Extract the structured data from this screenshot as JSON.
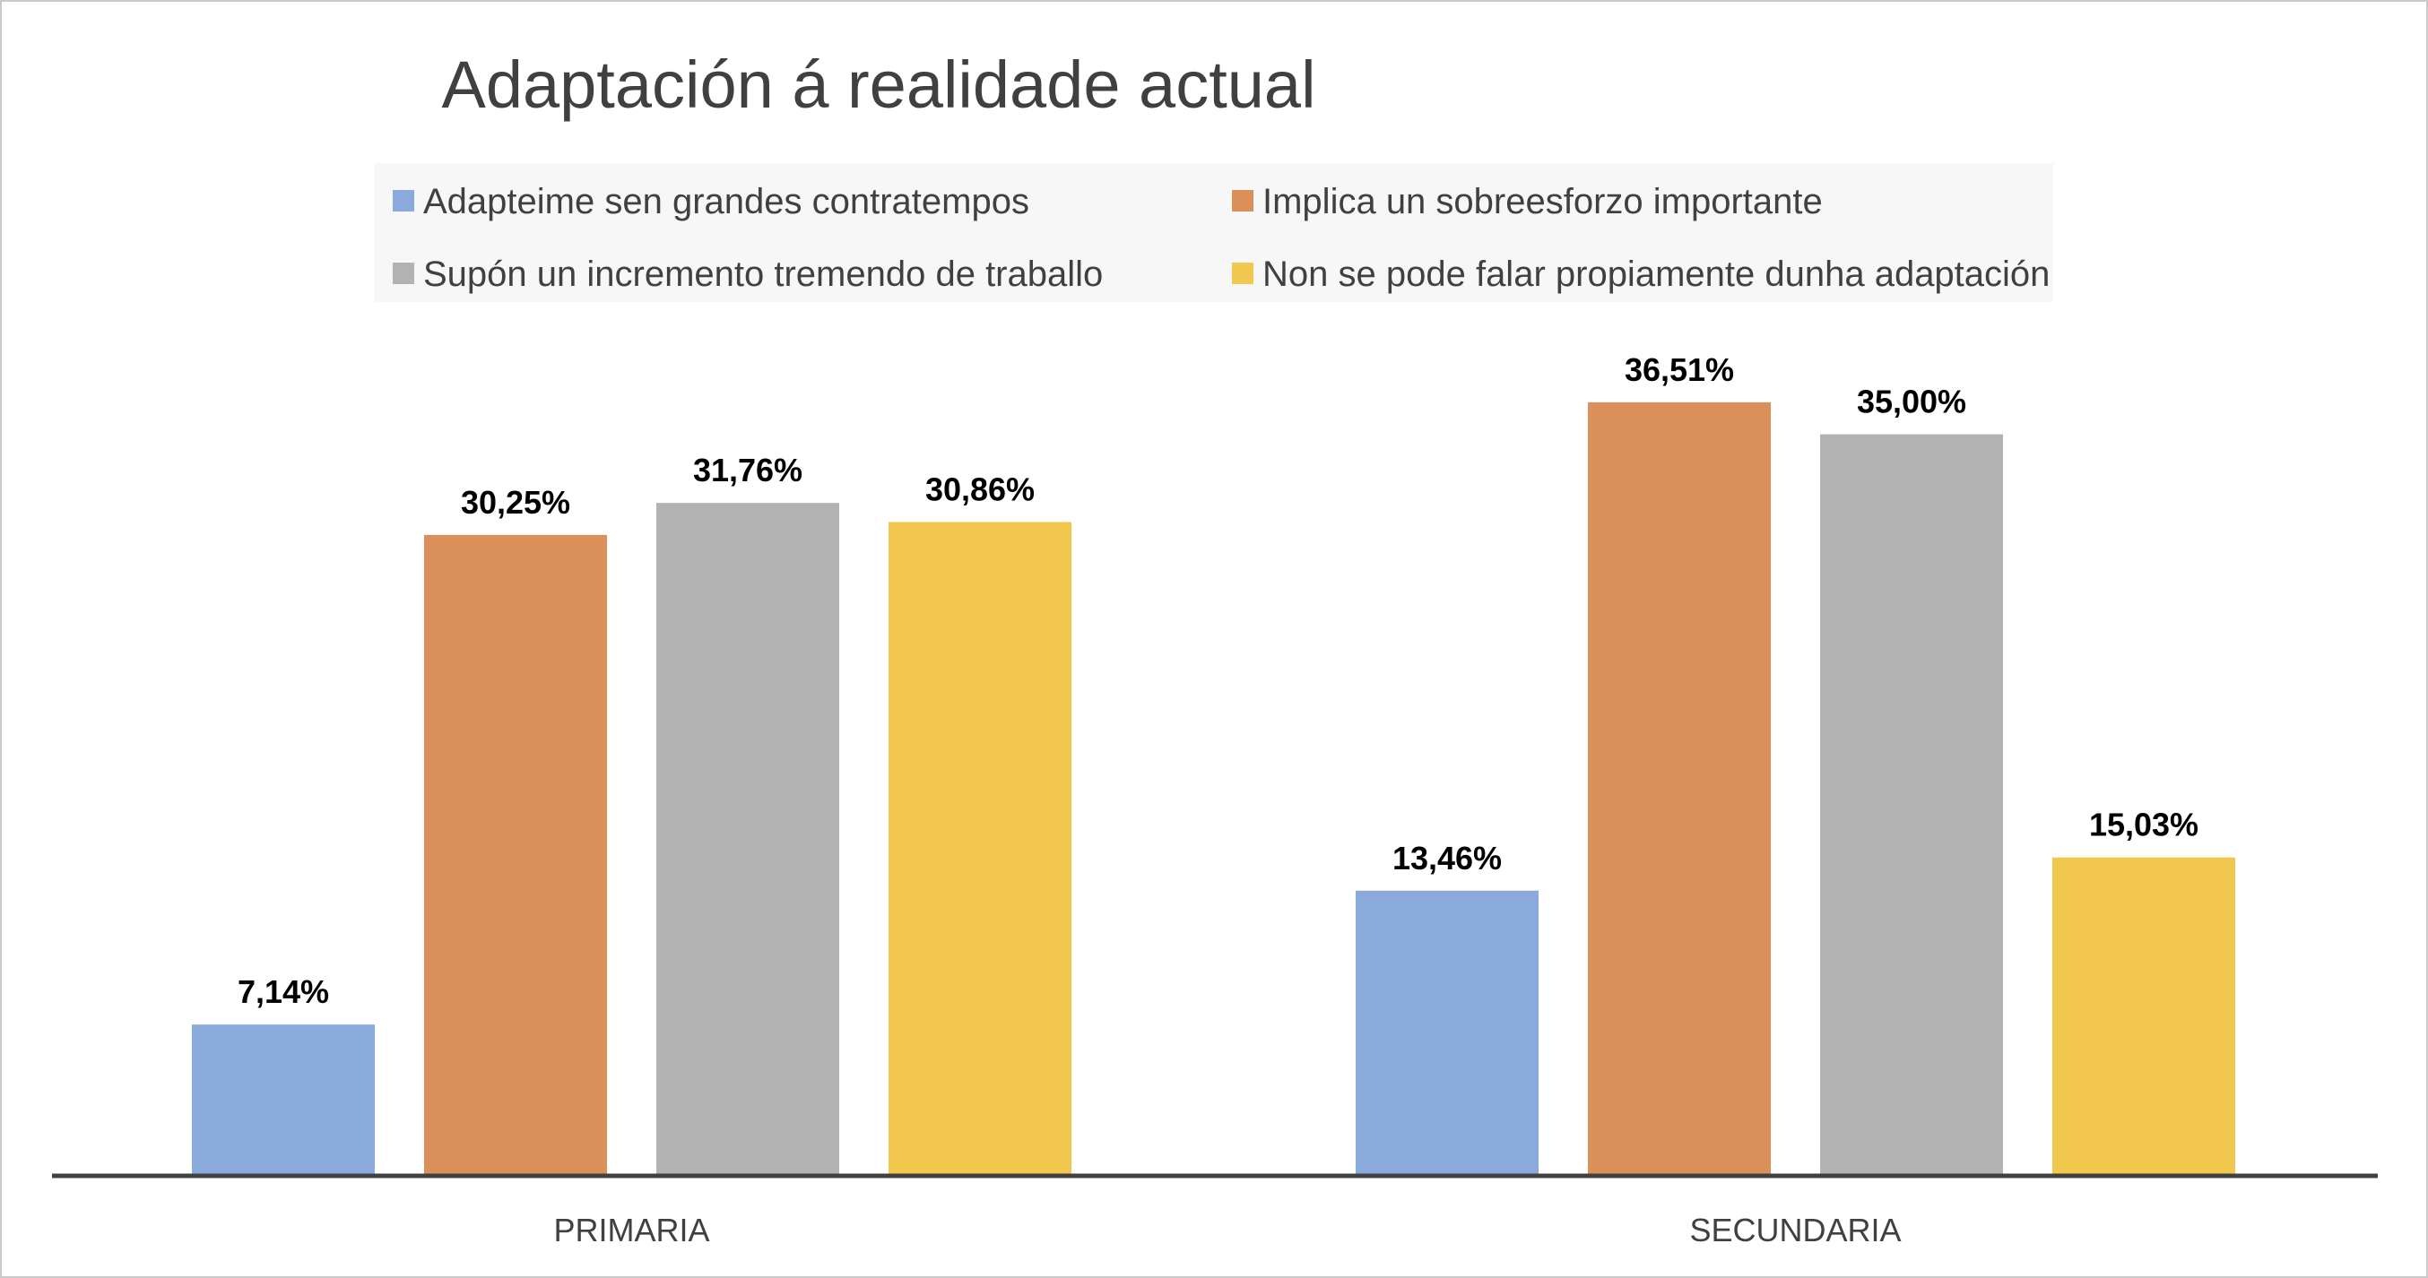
{
  "chart_data": {
    "type": "bar",
    "title": "Adaptación á realidade actual",
    "xlabel": "",
    "ylabel": "",
    "categories": [
      "PRIMARIA",
      "SECUNDARIA"
    ],
    "series": [
      {
        "name": "Adapteime sen grandes contratempos",
        "color": "#8AAADB",
        "values": [
          7.14,
          13.46
        ],
        "labels": [
          "7,14%",
          "13,46%"
        ]
      },
      {
        "name": "Implica un sobreesforzo importante",
        "color": "#DB8F59",
        "values": [
          30.25,
          36.51
        ],
        "labels": [
          "30,25%",
          "36,51%"
        ]
      },
      {
        "name": "Supón un incremento tremendo de traballo",
        "color": "#B2B2B2",
        "values": [
          31.76,
          35.0
        ],
        "labels": [
          "31,76%",
          "35,00%"
        ]
      },
      {
        "name": "Non se pode falar propiamente dunha adaptación",
        "color": "#F2C74E",
        "values": [
          30.86,
          15.03
        ],
        "labels": [
          "30,86%",
          "15,03%"
        ]
      }
    ],
    "ylim": [
      0,
      40
    ],
    "grid": false,
    "legend": "top"
  }
}
